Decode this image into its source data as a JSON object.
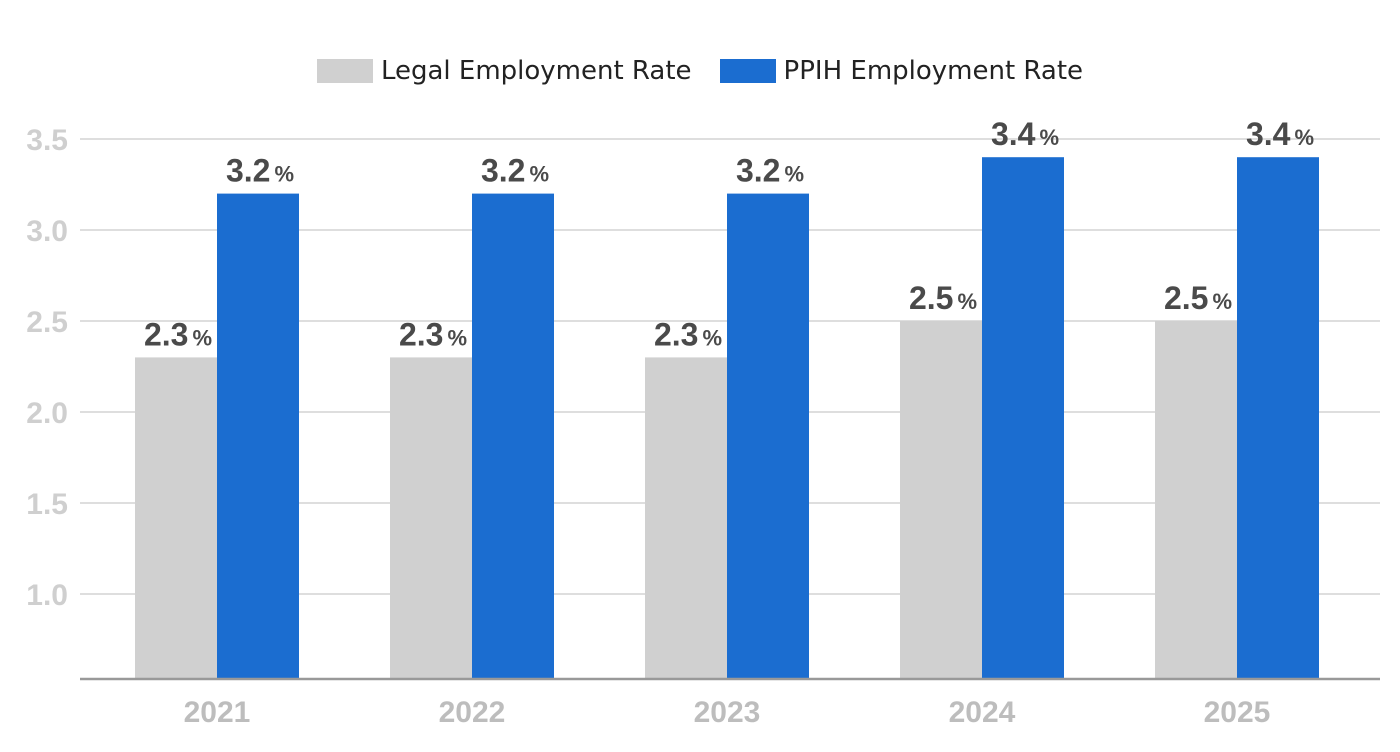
{
  "chart_data": {
    "type": "bar",
    "categories": [
      "2021",
      "2022",
      "2023",
      "2024",
      "2025"
    ],
    "series": [
      {
        "name": "Legal Employment Rate",
        "values": [
          2.3,
          2.3,
          2.3,
          2.5,
          2.5
        ],
        "color": "#d0d0d0"
      },
      {
        "name": "PPIH Employment Rate",
        "values": [
          3.2,
          3.2,
          3.2,
          3.4,
          3.4
        ],
        "color": "#1b6dd0"
      }
    ],
    "value_suffix": "%",
    "yticks": [
      "1.0",
      "1.5",
      "2.0",
      "2.5",
      "3.0",
      "3.5"
    ],
    "ylim": [
      0.5,
      3.5
    ],
    "grid": true,
    "legend": "top",
    "title": "",
    "xlabel": "",
    "ylabel": ""
  }
}
